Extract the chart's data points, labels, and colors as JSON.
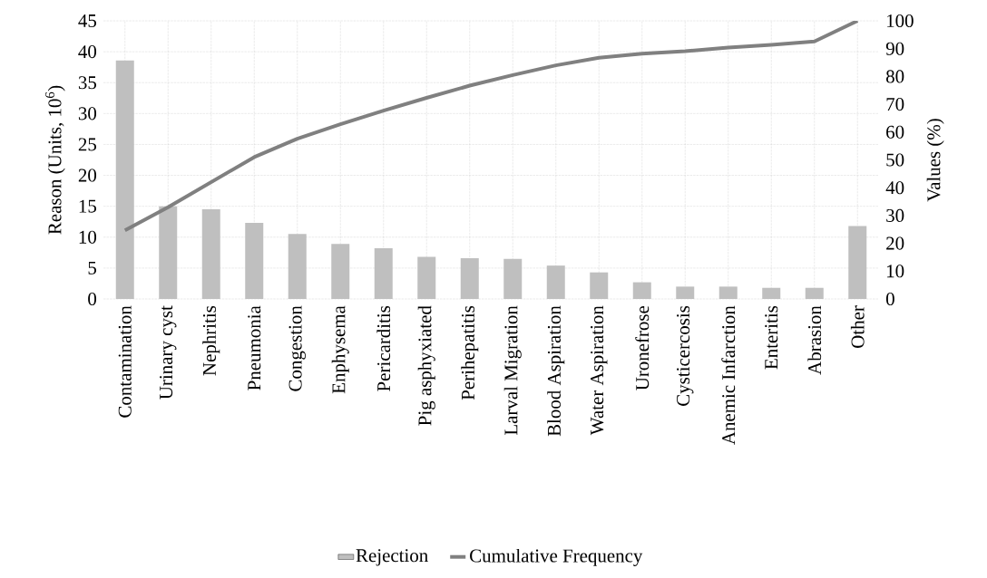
{
  "chart_data": {
    "type": "bar",
    "categories": [
      "Contamination",
      "Urinary cyst",
      "Nephritis",
      "Pneumonia",
      "Congestion",
      "Enphysema",
      "Pericarditis",
      "Pig asphyxiated",
      "Perihepatitis",
      "Larval Migration",
      "Blood Aspiration",
      "Water Aspiration",
      "Uronefrose",
      "Cysticercosis",
      "Anemic Infarction",
      "Enteritis",
      "Abrasion",
      "Other"
    ],
    "series": [
      {
        "name": "Rejection",
        "color": "#bfbfbf",
        "values": [
          38.6,
          15.0,
          14.5,
          12.3,
          10.5,
          8.9,
          8.2,
          6.8,
          6.6,
          6.5,
          5.4,
          4.3,
          2.7,
          2.0,
          2.0,
          1.8,
          1.8,
          11.8
        ]
      },
      {
        "name": "Cumulative Frequency",
        "type": "line",
        "axis": "y2",
        "color": "#808080",
        "values": [
          24.7,
          33,
          42,
          51,
          57.6,
          62.8,
          67.7,
          72.3,
          76.7,
          80.5,
          84,
          86.7,
          88.2,
          89.1,
          90.4,
          91.4,
          92.6,
          100
        ]
      }
    ],
    "ylabel": "Reason (Units, 10$^{6}$)",
    "y2label": "Values (%)",
    "ylim": [
      0,
      45
    ],
    "yticks": [
      0,
      5,
      10,
      15,
      20,
      25,
      30,
      35,
      40,
      45
    ],
    "y2lim": [
      0,
      100
    ],
    "y2ticks": [
      0,
      10,
      20,
      30,
      40,
      50,
      60,
      70,
      80,
      90,
      100
    ],
    "grid": true,
    "legend": "bottom",
    "marker": "none"
  }
}
